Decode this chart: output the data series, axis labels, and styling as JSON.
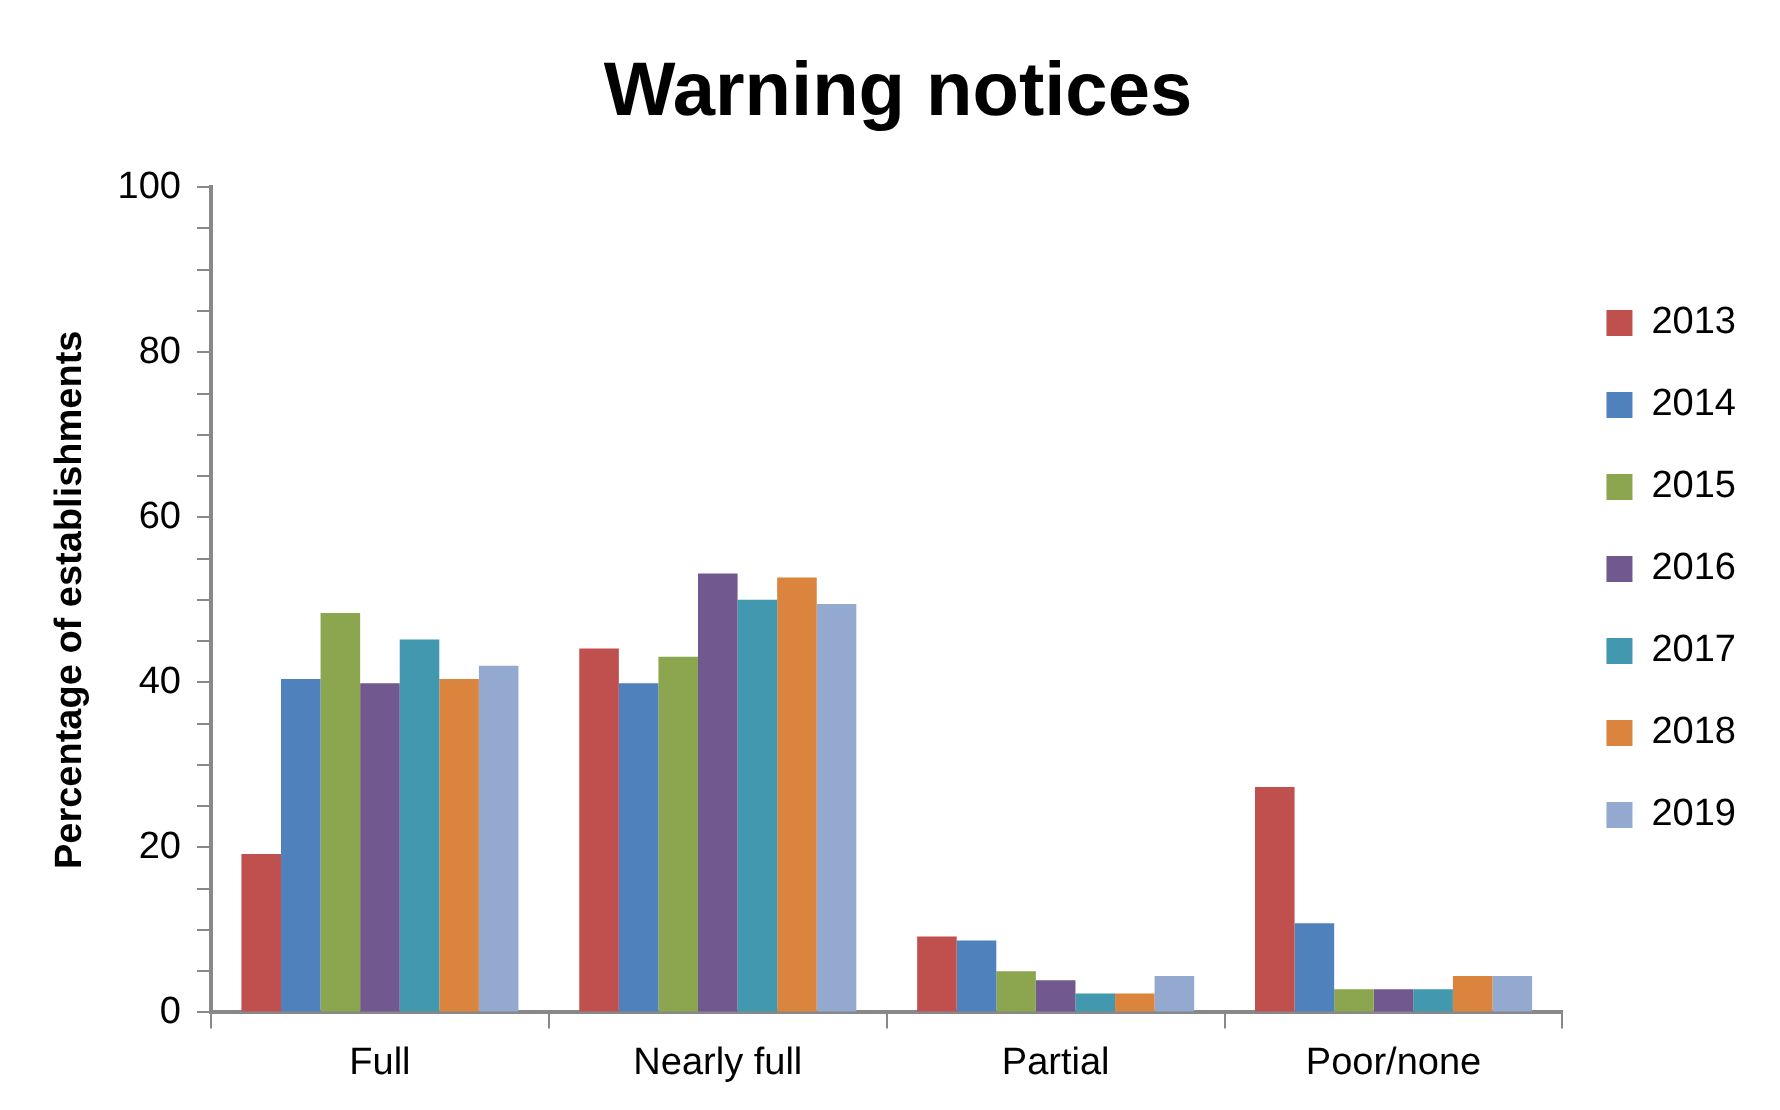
{
  "chart_data": {
    "type": "bar",
    "title": "Warning notices",
    "ylabel": "Percentage of establishments",
    "categories": [
      "Full",
      "Nearly full",
      "Partial",
      "Poor/none"
    ],
    "series": [
      {
        "name": "2013",
        "color": "#c0504d",
        "values": [
          19.2,
          44.1,
          9.2,
          27.3
        ]
      },
      {
        "name": "2014",
        "color": "#4f81bd",
        "values": [
          40.4,
          39.9,
          8.7,
          10.8
        ]
      },
      {
        "name": "2015",
        "color": "#8ba64e",
        "values": [
          48.4,
          43.1,
          5.0,
          2.8
        ]
      },
      {
        "name": "2016",
        "color": "#71588f",
        "values": [
          39.9,
          53.2,
          3.9,
          2.8
        ]
      },
      {
        "name": "2017",
        "color": "#4198af",
        "values": [
          45.2,
          50.0,
          2.3,
          2.8
        ]
      },
      {
        "name": "2018",
        "color": "#db843d",
        "values": [
          40.4,
          52.7,
          2.3,
          4.4
        ]
      },
      {
        "name": "2019",
        "color": "#93a9cf",
        "values": [
          42.0,
          49.5,
          4.4,
          4.4
        ]
      }
    ],
    "ylim": [
      0,
      100
    ],
    "yticks": [
      0,
      {
        "value": 5,
        "label": null
      },
      {
        "value": 10,
        "label": null
      },
      {
        "value": 15,
        "label": null
      },
      20,
      {
        "value": 25,
        "label": null
      },
      {
        "value": 30,
        "label": null
      },
      {
        "value": 35,
        "label": null
      },
      40,
      {
        "value": 45,
        "label": null
      },
      {
        "value": 50,
        "label": null
      },
      {
        "value": 55,
        "label": null
      },
      60,
      {
        "value": 65,
        "label": null
      },
      {
        "value": 70,
        "label": null
      },
      {
        "value": 75,
        "label": null
      },
      80,
      {
        "value": 85,
        "label": null
      },
      {
        "value": 90,
        "label": null
      },
      {
        "value": 95,
        "label": null
      },
      100
    ],
    "grid": false,
    "legend": "right"
  }
}
